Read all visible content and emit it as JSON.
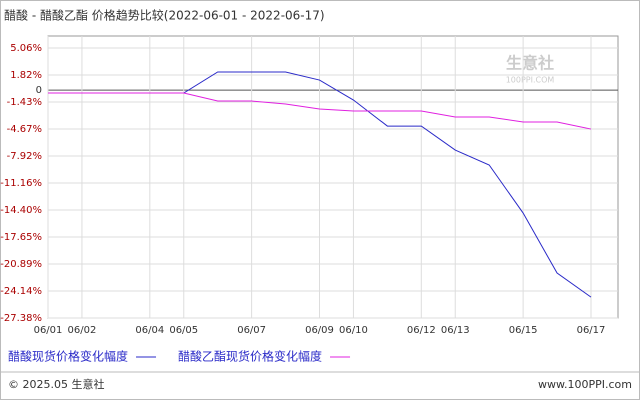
{
  "chart_data": {
    "type": "line",
    "title": "醋酸 - 醋酸乙酯 价格趋势比较(2022-06-01 - 2022-06-17)",
    "categories": [
      "06/01",
      "06/02",
      null,
      "06/04",
      "06/05",
      null,
      "06/07",
      null,
      "06/09",
      "06/10",
      null,
      "06/12",
      "06/13",
      null,
      "06/15",
      null,
      "06/17"
    ],
    "series": [
      {
        "name": "醋酸现货价格变化幅度",
        "color": "#2a2ac8",
        "values": [
          -0.35,
          -0.35,
          -0.35,
          -0.35,
          -0.35,
          2.18,
          2.18,
          2.18,
          1.21,
          -1.19,
          -4.32,
          -4.32,
          -7.2,
          -9.0,
          -14.77,
          -21.98,
          -24.87
        ]
      },
      {
        "name": "醋酸乙酯现货价格变化幅度",
        "color": "#e020e0",
        "values": [
          -0.35,
          -0.35,
          -0.35,
          -0.35,
          -0.35,
          -1.31,
          -1.31,
          -1.67,
          -2.27,
          -2.51,
          -2.51,
          -2.51,
          -3.23,
          -3.23,
          -3.83,
          -3.83,
          -4.68
        ]
      }
    ],
    "ylim": [
      -27.38,
      5.06
    ],
    "yticks": [
      {
        "value": 5.06,
        "label": "5.06%"
      },
      {
        "value": 1.82,
        "label": "1.82%"
      },
      0,
      {
        "value": -1.43,
        "label": "-1.43%"
      },
      {
        "value": -4.67,
        "label": "-4.67%"
      },
      {
        "value": -7.92,
        "label": "-7.92%"
      },
      {
        "value": -11.16,
        "label": "-11.16%"
      },
      {
        "value": -14.4,
        "label": "-14.40%"
      },
      {
        "value": -17.65,
        "label": "-17.65%"
      },
      {
        "value": -20.89,
        "label": "-20.89%"
      },
      {
        "value": -24.14,
        "label": "-24.14%"
      },
      {
        "value": -27.38,
        "label": "-27.38%"
      }
    ],
    "grid": true,
    "watermark": "生意社",
    "watermark_sub": "100PPI.COM",
    "footer_left": "© 2025.05 生意社",
    "footer_right": "www.100PPI.com"
  }
}
